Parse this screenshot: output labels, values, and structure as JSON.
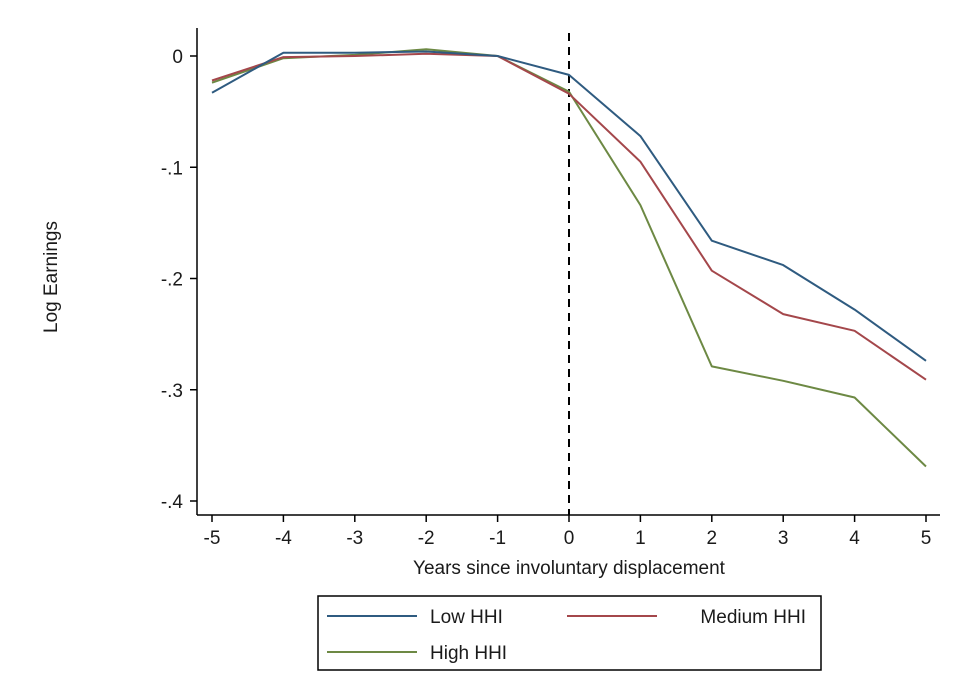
{
  "chart_data": {
    "type": "line",
    "title": "",
    "xlabel": "Years since involuntary displacement",
    "ylabel": "Log Earnings",
    "x": [
      -5,
      -4,
      -3,
      -2,
      -1,
      0,
      1,
      2,
      3,
      4,
      5
    ],
    "x_ticks": [
      -5,
      -4,
      -3,
      -2,
      -1,
      0,
      1,
      2,
      3,
      4,
      5
    ],
    "x_tick_labels": [
      "-5",
      "-4",
      "-3",
      "-2",
      "-1",
      "0",
      "1",
      "2",
      "3",
      "4",
      "5"
    ],
    "y_ticks": [
      0,
      -0.1,
      -0.2,
      -0.3,
      -0.4
    ],
    "y_tick_labels": [
      "0",
      "-.1",
      "-.2",
      "-.3",
      "-.4"
    ],
    "xlim": [
      -5,
      5
    ],
    "ylim": [
      -0.41,
      0.01
    ],
    "grid": false,
    "vertical_line": {
      "x": 0,
      "style": "dashed"
    },
    "legend_position": "bottom",
    "series": [
      {
        "name": "Low HHI",
        "color": "#2f5b80",
        "values": [
          -0.033,
          0.003,
          0.003,
          0.004,
          0.0,
          -0.017,
          -0.072,
          -0.166,
          -0.188,
          -0.228,
          -0.274
        ]
      },
      {
        "name": "Medium HHI",
        "color": "#a4474b",
        "values": [
          -0.022,
          -0.001,
          0.0,
          0.002,
          0.0,
          -0.034,
          -0.095,
          -0.193,
          -0.232,
          -0.247,
          -0.291
        ]
      },
      {
        "name": "High HHI",
        "color": "#6d8944",
        "values": [
          -0.024,
          -0.002,
          0.001,
          0.006,
          0.0,
          -0.032,
          -0.134,
          -0.279,
          -0.292,
          -0.307,
          -0.369
        ]
      }
    ]
  }
}
